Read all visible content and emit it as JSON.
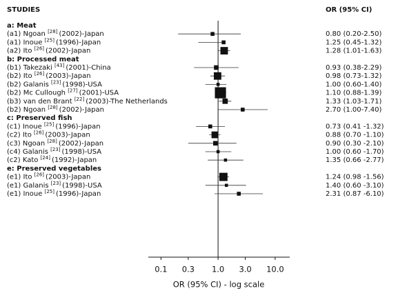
{
  "chart_data": {
    "type": "forest",
    "title": "STUDIES",
    "value_header": "OR (95% CI)",
    "xlabel": "OR (95% CI) - log scale",
    "log_scale": true,
    "xlim": [
      0.06,
      18
    ],
    "xticks": [
      0.1,
      0.3,
      {
        "value": 1,
        "label": "1.0"
      },
      {
        "value": 3,
        "label": "3.0"
      },
      {
        "value": 10,
        "label": "10.0"
      }
    ],
    "reference": 1,
    "color": "#111111",
    "groups": [
      {
        "heading": "a: Meat",
        "studies": [
          {
            "pre": "(a1) Ngoan",
            "ref": "[28]",
            "post": "(2002)-Japan",
            "or": 0.8,
            "lo": 0.2,
            "hi": 2.5,
            "text": "0.80 (0.20-2.50)",
            "weight": 2
          },
          {
            "pre": "(a1) Inoue",
            "ref": "[25]",
            "post": "(1996)-Japan",
            "or": 1.25,
            "lo": 0.45,
            "hi": 1.32,
            "text": "1.25 (0.45-1.32)",
            "weight": 2
          },
          {
            "pre": "(a2) Ito",
            "ref": "[26]",
            "post": "(2002)-Japan",
            "or": 1.28,
            "lo": 1.01,
            "hi": 1.63,
            "text": "1.28 (1.01-1.63)",
            "weight": 7
          }
        ]
      },
      {
        "heading": "b: Processed meat",
        "studies": [
          {
            "pre": "(b1) Takezaki",
            "ref": "[43]",
            "post": "(2001)-China",
            "or": 0.93,
            "lo": 0.38,
            "hi": 2.29,
            "text": "0.93 (0.38-2.29)",
            "weight": 3
          },
          {
            "pre": "(b2) Ito",
            "ref": "[26]",
            "post": "(2003)-Japan",
            "or": 0.98,
            "lo": 0.73,
            "hi": 1.32,
            "text": "0.98 (0.73-1.32)",
            "weight": 7
          },
          {
            "pre": "(b2) Galanis",
            "ref": "[23]",
            "post": "(1998)-USA",
            "or": 1.0,
            "lo": 0.6,
            "hi": 1.4,
            "text": "1.00 (0.60-1.40)",
            "weight": 1
          },
          {
            "pre": "(b2) Mc Cullough",
            "ref": "[27]",
            "post": "(2001)-USA",
            "or": 1.1,
            "lo": 0.88,
            "hi": 1.39,
            "text": "1.10 (0.88-1.39)",
            "weight": 12
          },
          {
            "pre": "(b3) van den Brant",
            "ref": "[22]",
            "post": "(2003)-The Netherlands",
            "or": 1.33,
            "lo": 1.03,
            "hi": 1.71,
            "text": "1.33 (1.03-1.71)",
            "weight": 4
          },
          {
            "pre": "(b2) Ngoan",
            "ref": "[28]",
            "post": "(2002)-Japan",
            "or": 2.7,
            "lo": 1.0,
            "hi": 7.4,
            "text": "2.70 (1.00-7.40)",
            "weight": 2
          }
        ]
      },
      {
        "heading": "c: Preserved fish",
        "studies": [
          {
            "pre": "(c1) Inoue",
            "ref": "[25]",
            "post": "(1996)-Japan",
            "or": 0.73,
            "lo": 0.41,
            "hi": 1.32,
            "text": "0.73 (0.41 -1.32)",
            "weight": 2
          },
          {
            "pre": "(c2) Ito",
            "ref": "[26]",
            "post": "(2003)-Japan",
            "or": 0.88,
            "lo": 0.7,
            "hi": 1.1,
            "text": "0.88 (0.70 -1.10)",
            "weight": 6
          },
          {
            "pre": "(c3) Ngoan",
            "ref": "[28]",
            "post": "(2002)-Japan",
            "or": 0.9,
            "lo": 0.3,
            "hi": 2.1,
            "text": "0.90 (0.30 -2.10)",
            "weight": 3
          },
          {
            "pre": "(c4) Galanis",
            "ref": "[23]",
            "post": "(1998)-USA",
            "or": 1.0,
            "lo": 0.6,
            "hi": 1.7,
            "text": "1.00 (0.60 -1.70)",
            "weight": 1
          },
          {
            "pre": "(c2) Kato",
            "ref": "[24]",
            "post": "(1992)-Japan",
            "or": 1.35,
            "lo": 0.66,
            "hi": 2.77,
            "text": "1.35 (0.66 -2.77)",
            "weight": 1
          }
        ]
      },
      {
        "heading": "e: Preserved vegetables",
        "studies": [
          {
            "pre": "(e1) Ito",
            "ref": "[26]",
            "post": "(2003)-Japan",
            "or": 1.24,
            "lo": 0.98,
            "hi": 1.56,
            "text": "1.24 (0.98 -1.56)",
            "weight": 8
          },
          {
            "pre": "(e1) Galanis",
            "ref": "[23]",
            "post": "(1998)-USA",
            "or": 1.4,
            "lo": 0.6,
            "hi": 3.1,
            "text": "1.40 (0.60 -3.10)",
            "weight": 1
          },
          {
            "pre": "(e1) Inoue",
            "ref": "[25]",
            "post": "(1996)-Japan",
            "or": 2.31,
            "lo": 0.87,
            "hi": 6.1,
            "text": "2.31 (0.87 -6.10)",
            "weight": 2
          }
        ]
      }
    ]
  }
}
